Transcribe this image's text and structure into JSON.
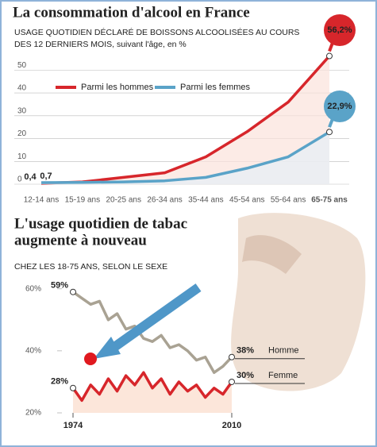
{
  "chart_data": [
    {
      "type": "line",
      "title": "La consommation d'alcool en France",
      "subtitle": [
        "USAGE QUOTIDIEN DÉCLARÉ DE BOISSONS ALCOOLISÉES AU COURS",
        "DES 12 DERNIERS MOIS, suivant l'âge, en %"
      ],
      "categories": [
        "12-14 ans",
        "15-19 ans",
        "20-25 ans",
        "26-34 ans",
        "35-44 ans",
        "45-54 ans",
        "55-64 ans",
        "65-75 ans"
      ],
      "series": [
        {
          "name": "Parmi les hommes",
          "color": "#d7262b",
          "area": true,
          "values": [
            0.4,
            1,
            3,
            5,
            12,
            23,
            36,
            56.2
          ],
          "value_labels": [
            "0,4",
            null,
            null,
            null,
            null,
            null,
            null,
            "56,2%"
          ]
        },
        {
          "name": "Parmi les femmes",
          "color": "#5aa3c8",
          "area": true,
          "values": [
            0.7,
            0.8,
            1,
            1.5,
            3,
            7,
            12,
            22.9
          ],
          "value_labels": [
            "0,7",
            null,
            null,
            null,
            null,
            null,
            null,
            "22,9%"
          ]
        }
      ],
      "ylim": [
        0,
        55
      ],
      "yticks": [
        0,
        10,
        20,
        30,
        40,
        50
      ],
      "grid": true
    },
    {
      "type": "line",
      "title": [
        "L'usage quotidien de tabac",
        "augmente à nouveau"
      ],
      "subtitle": "CHEZ LES 18-75 ANS, SELON LE SEXE",
      "x": [
        1974,
        1976,
        1978,
        1980,
        1982,
        1984,
        1986,
        1988,
        1990,
        1992,
        1994,
        1996,
        1998,
        2000,
        2002,
        2004,
        2006,
        2008,
        2010
      ],
      "series": [
        {
          "name": "Homme",
          "color": "#a9a293",
          "area": false,
          "values": [
            59,
            57,
            55,
            56,
            50,
            52,
            47,
            48,
            44,
            43,
            45,
            41,
            42,
            40,
            37,
            38,
            33,
            35,
            38
          ],
          "value_labels": [
            "59%",
            null,
            null,
            null,
            null,
            null,
            null,
            null,
            null,
            null,
            null,
            null,
            null,
            null,
            null,
            null,
            null,
            null,
            "38%"
          ]
        },
        {
          "name": "Femme",
          "color": "#d7262b",
          "area": true,
          "values": [
            28,
            24,
            29,
            26,
            31,
            27,
            32,
            29,
            33,
            28,
            31,
            26,
            30,
            27,
            29,
            25,
            28,
            26,
            30
          ],
          "value_labels": [
            "28%",
            null,
            null,
            null,
            null,
            null,
            null,
            null,
            null,
            null,
            null,
            null,
            null,
            null,
            null,
            null,
            null,
            null,
            "30%"
          ]
        }
      ],
      "xlim": [
        1974,
        2010
      ],
      "xticks": [
        1974,
        2010
      ],
      "ylim": [
        20,
        62
      ],
      "yticks": [
        {
          "value": 20,
          "label": "20%"
        },
        {
          "value": 40,
          "label": "40%"
        },
        {
          "value": 60,
          "label": "60%"
        }
      ],
      "grid": false
    }
  ]
}
